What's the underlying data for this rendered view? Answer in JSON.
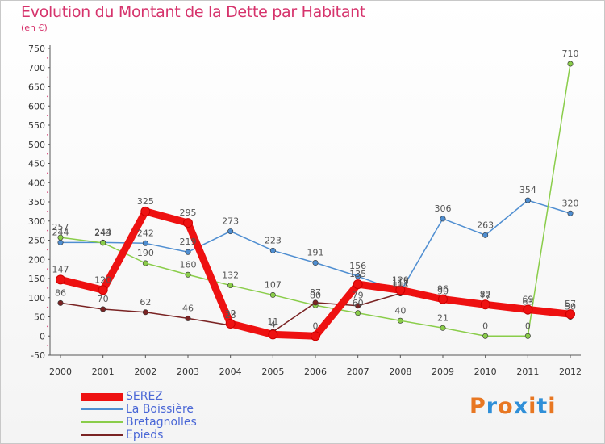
{
  "header": {
    "title": "Evolution du Montant de la Dette par Habitant",
    "subtitle": "(en €)"
  },
  "logo": {
    "text": "Proxiti",
    "colors": [
      "#e87722",
      "#2f8fd8",
      "#e87722",
      "#2f8fd8",
      "#e87722",
      "#2f8fd8",
      "#e87722"
    ]
  },
  "chart_data": {
    "type": "line",
    "title": "Evolution du Montant de la Dette par Habitant",
    "ylabel": "(en €)",
    "xlabel": "",
    "categories": [
      "2000",
      "2001",
      "2002",
      "2003",
      "2004",
      "2005",
      "2006",
      "2007",
      "2008",
      "2009",
      "2010",
      "2011",
      "2012"
    ],
    "ylim": [
      -50,
      750
    ],
    "yticks": [
      -50,
      0,
      50,
      100,
      150,
      200,
      250,
      300,
      350,
      400,
      450,
      500,
      550,
      600,
      650,
      700,
      750
    ],
    "grid": false,
    "legend_position": "bottom-left",
    "series": [
      {
        "name": "SEREZ",
        "color": "#ee1111",
        "values": [
          147,
          120,
          325,
          295,
          32,
          4,
          0,
          135,
          120,
          96,
          82,
          69,
          57
        ],
        "labels": [
          "147",
          "120",
          "325",
          "295",
          "32",
          "4",
          "0",
          "135",
          "120",
          "96",
          "82",
          "69",
          "57"
        ]
      },
      {
        "name": "La Boissière",
        "color": "#4f8ed1",
        "values": [
          244,
          244,
          242,
          219,
          273,
          223,
          191,
          156,
          115,
          306,
          263,
          354,
          320
        ],
        "labels": [
          "244",
          "244",
          "242",
          "219",
          "273",
          "223",
          "191",
          "156",
          "115",
          "306",
          "263",
          "354",
          "320"
        ]
      },
      {
        "name": "Bretagnolles",
        "color": "#8acd4a",
        "values": [
          257,
          243,
          190,
          160,
          132,
          107,
          80,
          60,
          40,
          21,
          0,
          0,
          710
        ],
        "labels": [
          "257",
          "243",
          "190",
          "160",
          "132",
          "107",
          "80",
          "60",
          "40",
          "21",
          "0",
          "0",
          "710"
        ]
      },
      {
        "name": "Epieds",
        "color": "#7a2323",
        "values": [
          86,
          70,
          62,
          46,
          28,
          11,
          87,
          79,
          111,
          90,
          77,
          63,
          50
        ],
        "labels": [
          "86",
          "70",
          "62",
          "46",
          "28",
          "11",
          "87",
          "79",
          "111",
          "90",
          "77",
          "63",
          "50"
        ]
      }
    ]
  }
}
